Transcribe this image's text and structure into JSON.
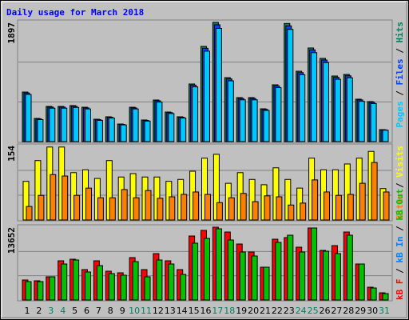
{
  "title": "Daily usage for March 2018",
  "legend_separator": " / ",
  "chart_data": [
    {
      "type": "bar",
      "legend_anchor": "top",
      "ylim": [
        0,
        1897
      ],
      "yticks": [
        {
          "value": 632.3,
          "label": null
        },
        {
          "value": 1264.7,
          "label": null
        },
        1897
      ],
      "series": [
        {
          "name": "Hits",
          "color": "#00805c",
          "values": [
            789,
            369,
            560,
            560,
            573,
            547,
            356,
            395,
            280,
            547,
            344,
            662,
            471,
            395,
            917,
            1515,
            1897,
            1018,
            700,
            700,
            522,
            904,
            1880,
            1120,
            1490,
            1324,
            1044,
            1069,
            675,
            637,
            191
          ]
        },
        {
          "name": "Files",
          "color": "#0040ff",
          "values": [
            773,
            362,
            549,
            549,
            562,
            536,
            349,
            387,
            274,
            536,
            337,
            649,
            462,
            387,
            899,
            1485,
            1859,
            998,
            686,
            686,
            512,
            886,
            1842,
            1098,
            1460,
            1298,
            1023,
            1048,
            662,
            624,
            187
          ]
        },
        {
          "name": "Pages",
          "color": "#00c8ff",
          "values": [
            750,
            350,
            532,
            532,
            544,
            520,
            338,
            375,
            266,
            520,
            327,
            629,
            447,
            375,
            871,
            1439,
            1802,
            967,
            665,
            665,
            496,
            859,
            1786,
            1064,
            1416,
            1258,
            992,
            1016,
            641,
            605,
            181
          ]
        }
      ]
    },
    {
      "type": "bar",
      "legend_anchor": "top",
      "ylim": [
        0,
        154
      ],
      "yticks": [
        {
          "value": 51.3,
          "label": null
        },
        {
          "value": 102.7,
          "label": null
        },
        154
      ],
      "series": [
        {
          "name": "Visits",
          "color": "#ffff00",
          "values": [
            80,
            123,
            151,
            151,
            98,
            104,
            86,
            123,
            89,
            96,
            89,
            89,
            80,
            84,
            101,
            128,
            136,
            76,
            98,
            84,
            73,
            108,
            84,
            66,
            128,
            104,
            104,
            116,
            128,
            142,
            65
          ]
        },
        {
          "name": "Sites",
          "color": "#ff8000",
          "values": [
            28,
            51,
            94,
            91,
            51,
            66,
            46,
            46,
            63,
            46,
            61,
            45,
            48,
            53,
            58,
            53,
            36,
            46,
            55,
            38,
            50,
            48,
            31,
            35,
            83,
            58,
            51,
            53,
            76,
            119,
            58
          ]
        }
      ]
    },
    {
      "type": "bar",
      "legend_anchor": "bottom",
      "ylim": [
        0,
        13652
      ],
      "yticks": [
        {
          "value": 4550.7,
          "label": null
        },
        {
          "value": 9101.3,
          "label": null
        },
        13652
      ],
      "categories": [
        "1",
        "2",
        "3",
        "4",
        "5",
        "6",
        "7",
        "8",
        "9",
        "10",
        "11",
        "12",
        "13",
        "14",
        "15",
        "16",
        "17",
        "18",
        "19",
        "20",
        "21",
        "22",
        "23",
        "24",
        "25",
        "26",
        "27",
        "28",
        "29",
        "30",
        "31"
      ],
      "category_colors": [
        "#000000",
        "#000000",
        "#00805c",
        "#00805c",
        "#000000",
        "#000000",
        "#000000",
        "#000000",
        "#000000",
        "#00805c",
        "#00805c",
        "#000000",
        "#000000",
        "#000000",
        "#000000",
        "#000000",
        "#00805c",
        "#00805c",
        "#000000",
        "#000000",
        "#000000",
        "#000000",
        "#000000",
        "#00805c",
        "#00805c",
        "#000000",
        "#000000",
        "#000000",
        "#000000",
        "#000000",
        "#00805c"
      ],
      "series": [
        {
          "name": "kB F",
          "color": "#ff0000",
          "values": [
            3750,
            3600,
            4350,
            7350,
            7650,
            5700,
            7350,
            5400,
            5100,
            7950,
            5700,
            8700,
            7350,
            5700,
            12000,
            13050,
            13652,
            12750,
            10500,
            9000,
            6150,
            11400,
            11700,
            9900,
            13500,
            9300,
            10200,
            12750,
            6750,
            2400,
            1350
          ]
        },
        {
          "name": "kB In",
          "color": "#0080ff",
          "values": [
            0,
            0,
            0,
            0,
            0,
            0,
            0,
            0,
            0,
            0,
            0,
            0,
            0,
            0,
            0,
            0,
            0,
            0,
            0,
            0,
            0,
            0,
            0,
            0,
            0,
            0,
            0,
            0,
            0,
            0,
            0
          ]
        },
        {
          "name": "kB Out",
          "color": "#00c000",
          "values": [
            3450,
            3450,
            4350,
            6750,
            7500,
            5250,
            6450,
            4950,
            4650,
            7200,
            4350,
            7500,
            6750,
            4800,
            10650,
            11550,
            13350,
            11250,
            9000,
            8250,
            6150,
            10800,
            12150,
            9000,
            13500,
            9150,
            8700,
            12150,
            6750,
            2250,
            1200
          ]
        }
      ]
    }
  ]
}
